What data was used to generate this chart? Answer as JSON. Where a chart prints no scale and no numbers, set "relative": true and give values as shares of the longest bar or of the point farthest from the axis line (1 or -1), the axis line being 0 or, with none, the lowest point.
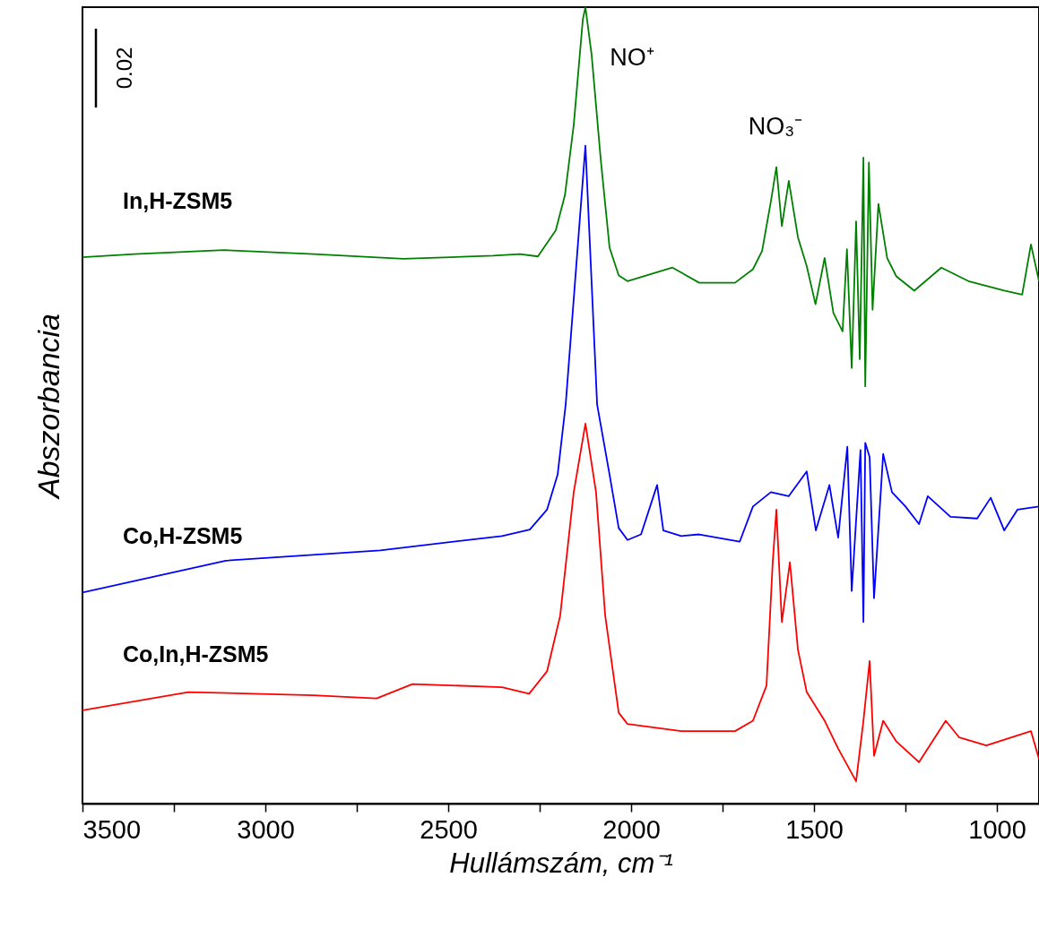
{
  "chart_data": {
    "type": "line",
    "relative": true,
    "xlabel": "Hullámszám, cm⁻¹",
    "ylabel": "Abszorbancia",
    "xlim": [
      3500,
      885
    ],
    "xticks": [
      3500,
      {
        "value": 3250,
        "label": null
      },
      3000,
      {
        "value": 2750,
        "label": null
      },
      2500,
      {
        "value": 2250,
        "label": null
      },
      2000,
      {
        "value": 1750,
        "label": null
      },
      1500,
      {
        "value": 1250,
        "label": null
      },
      1000
    ],
    "grid": false,
    "tick_labels": "x",
    "marker": "none",
    "line_style": "solid",
    "annotations": [
      "0.02",
      "NO⁺",
      "NO₃⁻"
    ],
    "series": [
      {
        "name": "In,H-ZSM5",
        "color": "#008000",
        "x": [
          3500,
          3358,
          3113,
          2868,
          2623,
          2377,
          2304,
          2255,
          2206,
          2181,
          2157,
          2132,
          2125,
          2108,
          2083,
          2059,
          2034,
          2010,
          1887,
          1814,
          1716,
          1667,
          1642,
          1618,
          1603,
          1588,
          1569,
          1544,
          1520,
          1496,
          1471,
          1447,
          1422,
          1410,
          1397,
          1385,
          1375,
          1365,
          1360,
          1350,
          1340,
          1324,
          1300,
          1275,
          1226,
          1152,
          1078,
          1029,
          980,
          931,
          907,
          885
        ],
        "values": [
          0.686,
          0.69,
          0.695,
          0.69,
          0.684,
          0.688,
          0.69,
          0.687,
          0.72,
          0.764,
          0.852,
          0.985,
          1,
          0.94,
          0.808,
          0.698,
          0.663,
          0.656,
          0.673,
          0.654,
          0.654,
          0.671,
          0.694,
          0.756,
          0.799,
          0.725,
          0.782,
          0.711,
          0.675,
          0.627,
          0.685,
          0.616,
          0.593,
          0.696,
          0.547,
          0.731,
          0.558,
          0.811,
          0.524,
          0.805,
          0.62,
          0.753,
          0.685,
          0.662,
          0.644,
          0.673,
          0.656,
          0.65,
          0.644,
          0.639,
          0.702,
          0.656
        ]
      },
      {
        "name": "Co,H-ZSM5",
        "color": "#0000ff",
        "x": [
          3500,
          3108,
          2686,
          2353,
          2277,
          2230,
          2201,
          2179,
          2125,
          2093,
          2059,
          2034,
          2010,
          1973,
          1929,
          1912,
          1863,
          1814,
          1703,
          1667,
          1618,
          1569,
          1520,
          1495,
          1458,
          1434,
          1409,
          1397,
          1373,
          1365,
          1360,
          1348,
          1336,
          1311,
          1287,
          1250,
          1213,
          1189,
          1127,
          1054,
          1017,
          980,
          944,
          885
        ],
        "values": [
          0.265,
          0.305,
          0.318,
          0.336,
          0.344,
          0.369,
          0.413,
          0.501,
          0.826,
          0.501,
          0.413,
          0.346,
          0.331,
          0.338,
          0.4,
          0.343,
          0.336,
          0.338,
          0.329,
          0.373,
          0.391,
          0.386,
          0.417,
          0.343,
          0.4,
          0.334,
          0.448,
          0.267,
          0.444,
          0.228,
          0.453,
          0.435,
          0.258,
          0.439,
          0.391,
          0.373,
          0.351,
          0.386,
          0.36,
          0.358,
          0.384,
          0.343,
          0.369,
          0.373
        ]
      },
      {
        "name": "Co,In,H-ZSM5",
        "color": "#ff0000",
        "x": [
          3500,
          3211,
          2868,
          2696,
          2598,
          2402,
          2353,
          2279,
          2230,
          2194,
          2157,
          2125,
          2096,
          2071,
          2034,
          2010,
          1863,
          1716,
          1667,
          1630,
          1613,
          1603,
          1588,
          1566,
          1544,
          1520,
          1471,
          1434,
          1385,
          1365,
          1348,
          1336,
          1311,
          1275,
          1213,
          1140,
          1103,
          1029,
          907,
          885
        ],
        "values": [
          0.117,
          0.14,
          0.136,
          0.132,
          0.15,
          0.147,
          0.146,
          0.138,
          0.166,
          0.236,
          0.391,
          0.477,
          0.391,
          0.236,
          0.114,
          0.1,
          0.091,
          0.091,
          0.104,
          0.148,
          0.303,
          0.369,
          0.228,
          0.303,
          0.193,
          0.14,
          0.104,
          0.069,
          0.028,
          0.104,
          0.179,
          0.06,
          0.104,
          0.078,
          0.052,
          0.104,
          0.083,
          0.073,
          0.091,
          0.056
        ]
      }
    ]
  }
}
